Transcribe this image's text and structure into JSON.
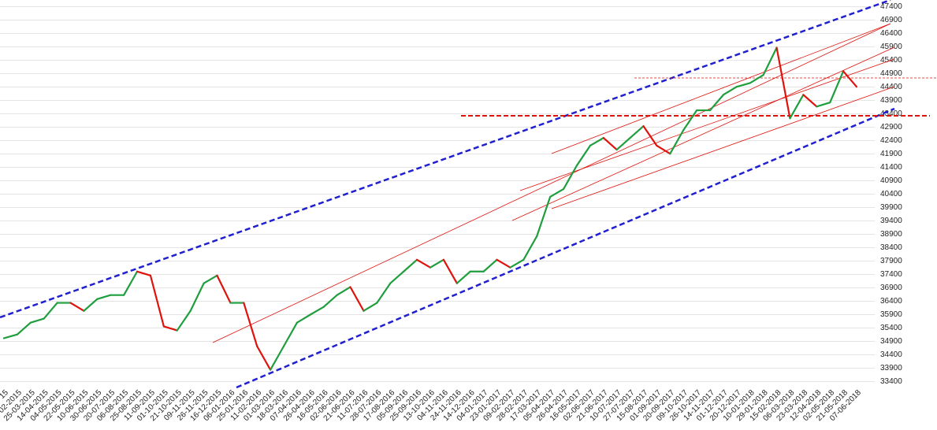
{
  "chart_data": {
    "type": "line",
    "categories": [
      "15",
      "02-2015",
      "25-03-2015",
      "14-04-2015",
      "04-05-2015",
      "22-05-2015",
      "10-06-2015",
      "30-06-2015",
      "20-07-2015",
      "06-08-2015",
      "25-08-2015",
      "11-09-2015",
      "01-10-2015",
      "21-10-2015",
      "09-11-2015",
      "26-11-2015",
      "16-12-2015",
      "06-01-2016",
      "25-01-2016",
      "11-02-2016",
      "01-03-2016",
      "18-03-2016",
      "07-04-2016",
      "26-04-2016",
      "16-05-2016",
      "02-06-2016",
      "21-06-2016",
      "11-07-2016",
      "28-07-2016",
      "17-08-2016",
      "05-09-2016",
      "25-09-2016",
      "13-10-2016",
      "04-11-2016",
      "24-11-2016",
      "14-12-2016",
      "04-01-2017",
      "23-01-2017",
      "09-02-2017",
      "28-02-2017",
      "17-03-2017",
      "05-04-2017",
      "26-04-2017",
      "16-05-2017",
      "02-06-2017",
      "21-06-2017",
      "10-07-2017",
      "27-07-2017",
      "15-08-2017",
      "01-09-2017",
      "20-09-2017",
      "09-10-2017",
      "26-10-2017",
      "14-11-2017",
      "01-12-2017",
      "20-12-2017",
      "10-01-2018",
      "29-01-2018",
      "15-02-2018",
      "06-03-2018",
      "23-03-2018",
      "12-04-2018",
      "02-05-2018",
      "21-05-2018",
      "07-06-2018"
    ],
    "values": [
      35020,
      35160,
      35600,
      35750,
      36340,
      36340,
      36040,
      36480,
      36630,
      36630,
      37510,
      37360,
      35460,
      35310,
      36040,
      37070,
      37360,
      36340,
      36340,
      34720,
      33840,
      34720,
      35600,
      35900,
      36190,
      36630,
      36930,
      36040,
      36340,
      37070,
      37510,
      37950,
      37660,
      37950,
      37070,
      37510,
      37510,
      37950,
      37660,
      37950,
      38830,
      40300,
      40590,
      41470,
      42210,
      42500,
      42060,
      42500,
      42940,
      42210,
      41910,
      42790,
      43530,
      43530,
      44110,
      44410,
      44550,
      44850,
      45870,
      43230,
      44110,
      43670,
      43820,
      44990,
      44410
    ],
    "up_color": "#1f9e3e",
    "down_color": "#e0120c",
    "ylim": [
      33150,
      47650
    ],
    "yticks": [
      33400,
      33900,
      34400,
      34900,
      35400,
      35900,
      36400,
      36900,
      37400,
      37900,
      38400,
      38900,
      39400,
      39900,
      40400,
      40900,
      41400,
      41900,
      42400,
      42900,
      43400,
      43900,
      44400,
      44900,
      45400,
      45900,
      46400,
      46900,
      47400
    ],
    "grid": true
  }
}
